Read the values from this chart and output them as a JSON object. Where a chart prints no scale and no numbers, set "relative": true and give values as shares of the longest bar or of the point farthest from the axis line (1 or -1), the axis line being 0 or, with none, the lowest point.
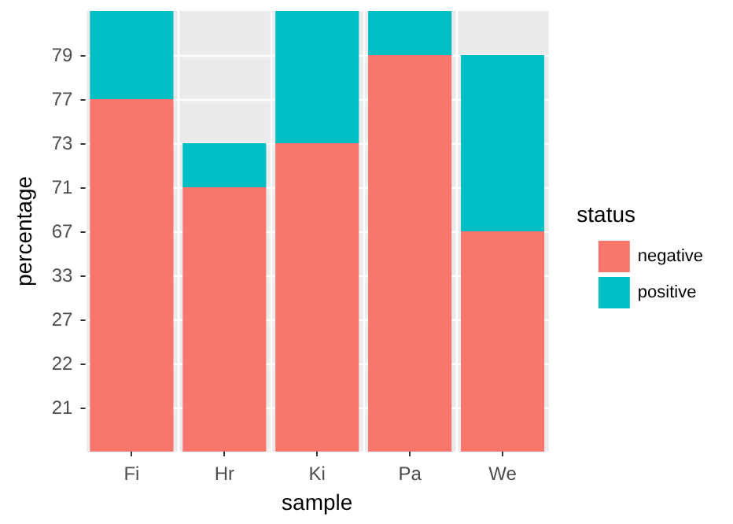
{
  "chart_data": {
    "type": "bar",
    "stacked": true,
    "relative": true,
    "xlabel": "sample",
    "ylabel": "percentage",
    "legend_title": "status",
    "categories": [
      "Fi",
      "Hr",
      "Ki",
      "Pa",
      "We"
    ],
    "y_categories": [
      "79",
      "77",
      "73",
      "71",
      "67",
      "33",
      "27",
      "22",
      "21"
    ],
    "series": [
      {
        "name": "negative",
        "color": "#f8766d",
        "values": [
          0.8,
          0.6,
          0.7,
          0.9,
          0.5
        ]
      },
      {
        "name": "positive",
        "color": "#00bfc4",
        "values": [
          0.2,
          0.1,
          0.3,
          0.1,
          0.4
        ]
      }
    ],
    "grid": true,
    "legend": "right"
  }
}
